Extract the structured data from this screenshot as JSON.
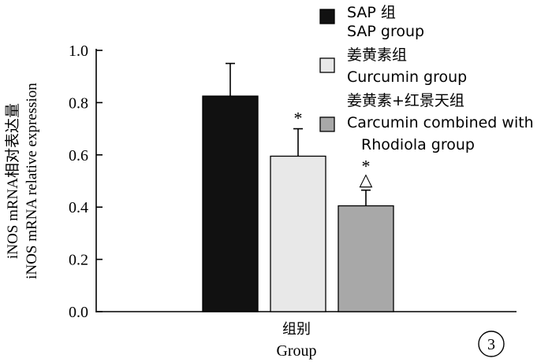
{
  "chart_data": {
    "type": "bar",
    "ylabel_cn": "iNOS mRNA相对表达量",
    "ylabel_en": "iNOS mRNA relative expression",
    "xlabel_cn": "组别",
    "xlabel_en": "Group",
    "panel_label": "3",
    "ylim": [
      0,
      1.0
    ],
    "yticks": [
      "0.0",
      "0.2",
      "0.4",
      "0.6",
      "0.8",
      "1.0"
    ],
    "grid": false,
    "legend_position": "top-right",
    "series": [
      {
        "legend_cn": "SAP 组",
        "legend_en": "SAP group",
        "value": 0.825,
        "error": 0.125,
        "marker": "",
        "color": "#111111"
      },
      {
        "legend_cn": "姜黄素组",
        "legend_en": "Curcumin group",
        "value": 0.595,
        "error": 0.105,
        "marker": "*",
        "color": "#e8e8e8"
      },
      {
        "legend_cn": "姜黄素+红景天组",
        "legend_en": "Carcumin combined with Rhodiola group",
        "value": 0.405,
        "error": 0.06,
        "marker": "*\n△",
        "color": "#a8a8a8"
      }
    ]
  }
}
